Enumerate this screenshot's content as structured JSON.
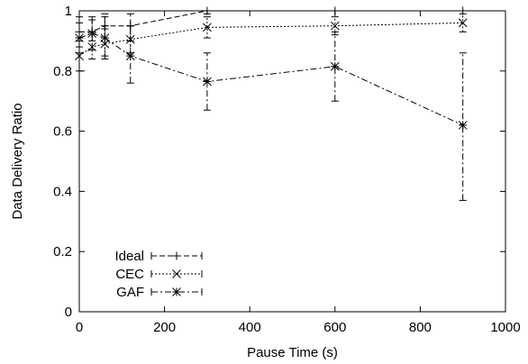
{
  "chart_data": {
    "type": "line",
    "title": "",
    "xlabel": "Pause Time (s)",
    "ylabel": "Data Delivery Ratio",
    "xlim": [
      0,
      1000
    ],
    "ylim": [
      0,
      1
    ],
    "xticks": [
      0,
      200,
      400,
      600,
      800,
      1000
    ],
    "yticks": [
      0,
      0.2,
      0.4,
      0.6,
      0.8,
      1
    ],
    "xtick_labels": [
      "0",
      "200",
      "400",
      "600",
      "800",
      "1000"
    ],
    "ytick_labels": [
      "0",
      "0.2",
      "0.4",
      "0.6",
      "0.8",
      "1"
    ],
    "grid": false,
    "legend_position": "bottom-left",
    "series": [
      {
        "name": "Ideal",
        "marker": "plus",
        "x": [
          0,
          30,
          60,
          120,
          300,
          600,
          900
        ],
        "y": [
          0.93,
          0.93,
          0.95,
          0.95,
          1.0,
          1.0,
          1.0
        ],
        "err_low": [
          0.88,
          0.9,
          0.91,
          0.9,
          0.99,
          1.0,
          1.0
        ],
        "err_high": [
          0.98,
          0.97,
          0.99,
          0.99,
          1.0,
          1.0,
          1.0
        ]
      },
      {
        "name": "CEC",
        "marker": "cross",
        "x": [
          0,
          30,
          60,
          120,
          300,
          600,
          900
        ],
        "y": [
          0.85,
          0.88,
          0.89,
          0.905,
          0.945,
          0.95,
          0.96
        ],
        "err_low": [
          0.8,
          0.84,
          0.85,
          0.86,
          0.91,
          0.92,
          0.93
        ],
        "err_high": [
          0.9,
          0.93,
          0.94,
          0.95,
          0.98,
          0.98,
          0.99
        ]
      },
      {
        "name": "GAF",
        "marker": "star",
        "x": [
          0,
          30,
          60,
          120,
          300,
          600,
          900
        ],
        "y": [
          0.91,
          0.925,
          0.91,
          0.85,
          0.765,
          0.815,
          0.62
        ],
        "err_low": [
          0.86,
          0.87,
          0.84,
          0.76,
          0.67,
          0.7,
          0.37
        ],
        "err_high": [
          0.96,
          0.98,
          0.98,
          0.95,
          0.86,
          0.93,
          0.86
        ]
      }
    ]
  }
}
